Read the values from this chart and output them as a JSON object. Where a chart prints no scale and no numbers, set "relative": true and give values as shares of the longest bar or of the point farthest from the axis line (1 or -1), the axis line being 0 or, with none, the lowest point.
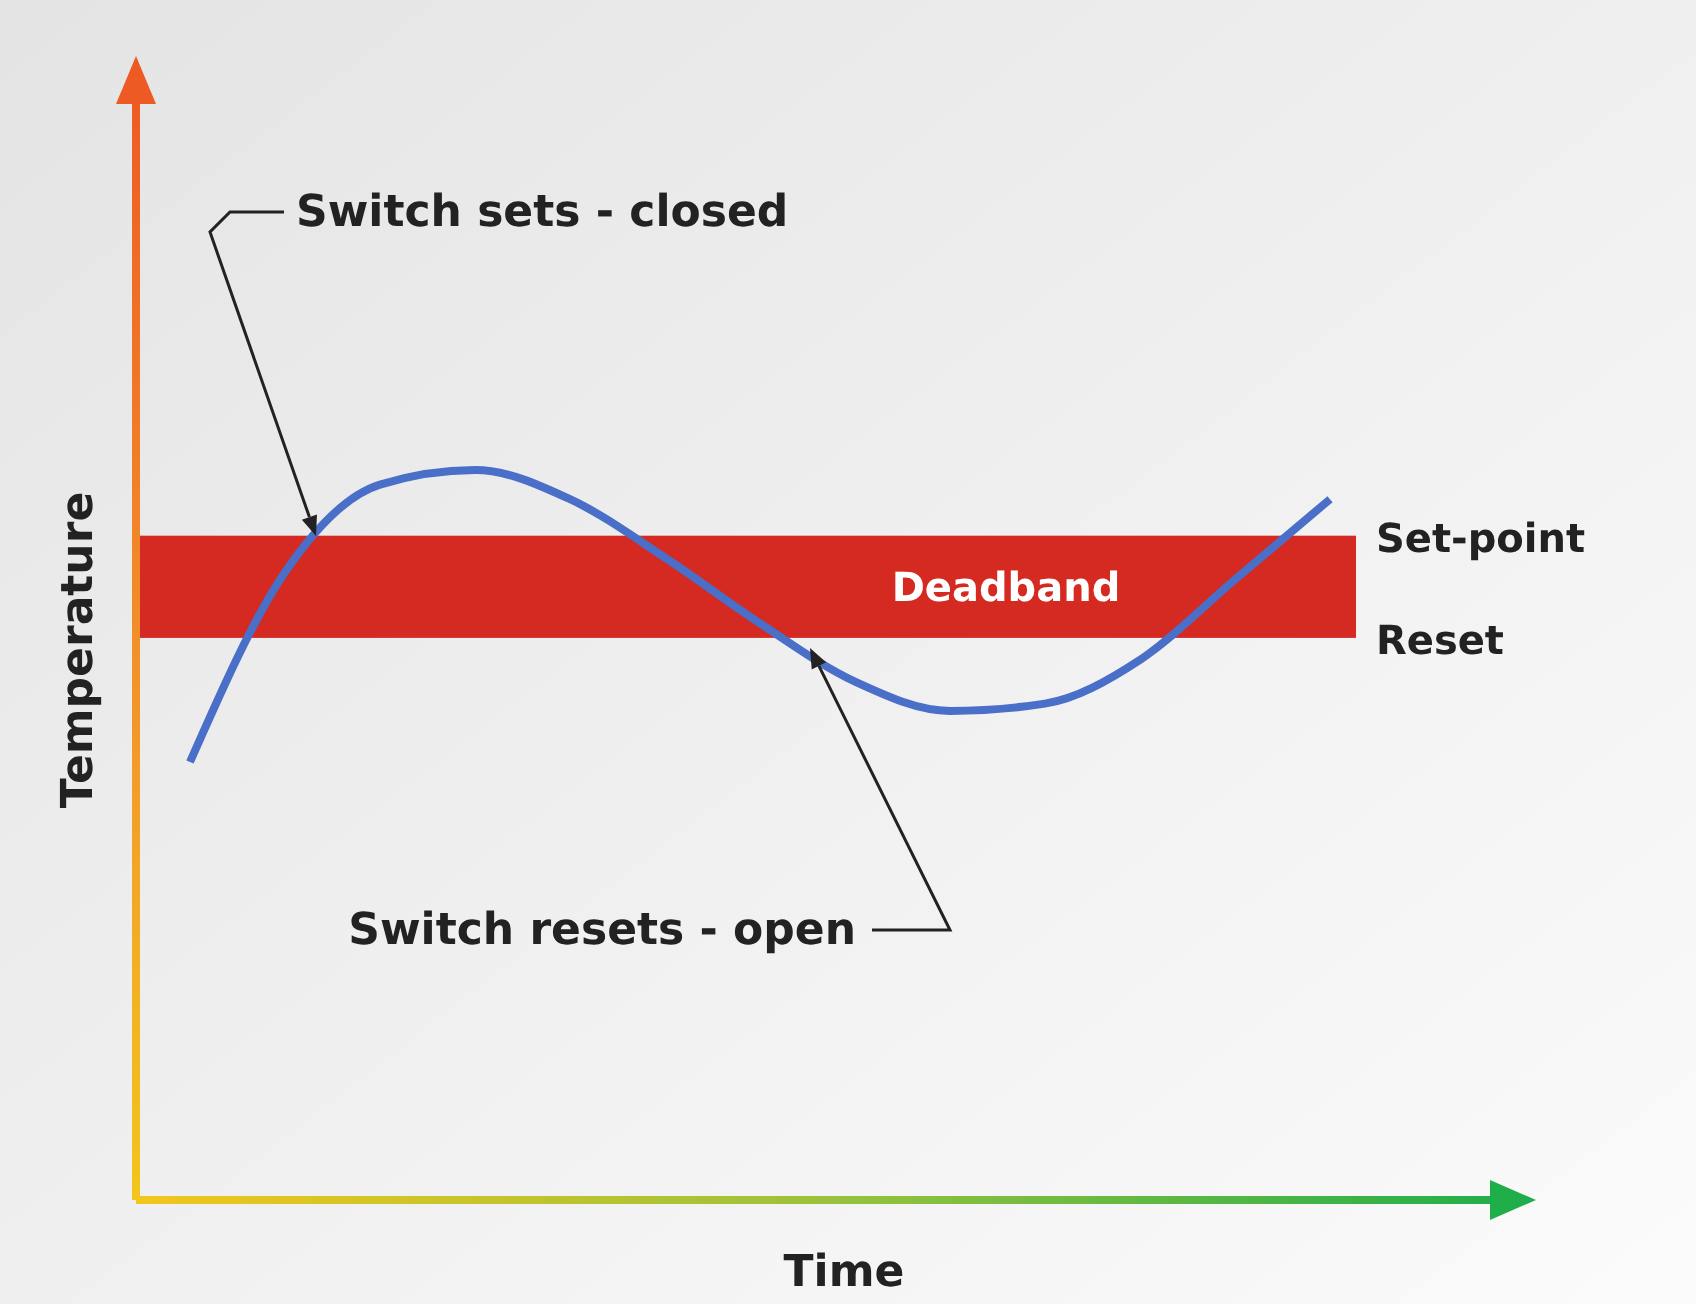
{
  "chart_data": {
    "type": "line",
    "relative": true,
    "xlabel": "Time",
    "ylabel": "Temperature",
    "categories": [
      null,
      null,
      null,
      null,
      null,
      null,
      null,
      null,
      null,
      null,
      null,
      null,
      null
    ],
    "series": [
      {
        "color": "#4a6fc8",
        "values": [
          0.6,
          0.86,
          0.98,
          1,
          0.96,
          0.88,
          0.79,
          0.71,
          0.67,
          0.68,
          0.74,
          0.85,
          0.96
        ]
      }
    ],
    "bands": [
      {
        "axis": "y",
        "from": 0.77,
        "to": 0.91,
        "label": "Deadband",
        "color": "#d42a22"
      }
    ],
    "annotations": [
      "Set-point",
      "Reset",
      "Switch sets - closed",
      "Switch resets - open"
    ],
    "line_style": "solid"
  }
}
